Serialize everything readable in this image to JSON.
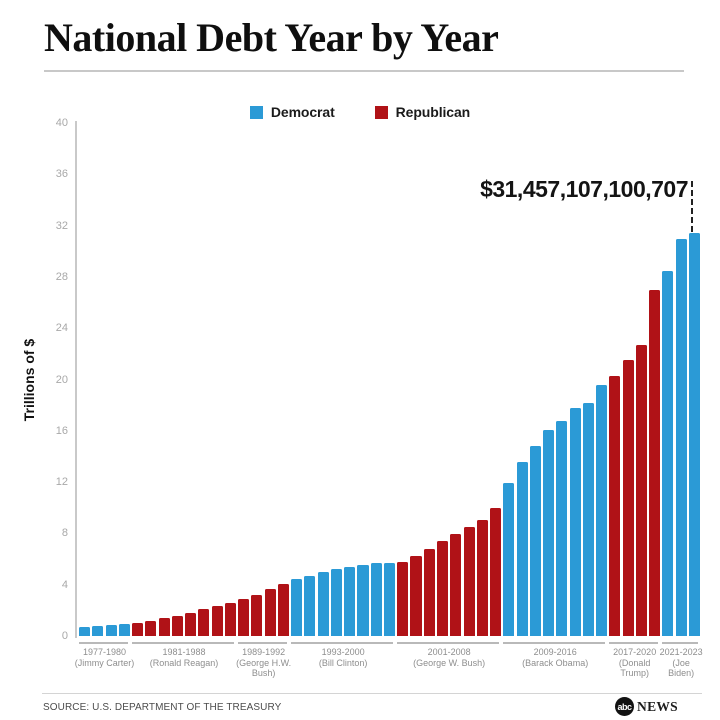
{
  "header": {
    "title": "National Debt Year by Year"
  },
  "legend": [
    {
      "label": "Democrat"
    },
    {
      "label": "Republican"
    }
  ],
  "y_axis": {
    "label": "Trillions of $",
    "ticks": [
      0,
      4,
      8,
      12,
      16,
      20,
      24,
      28,
      32,
      36,
      40
    ]
  },
  "footer": {
    "source": "SOURCE: U.S. DEPARTMENT OF THE TREASURY",
    "logo_abc": "abc",
    "logo_news": "NEWS"
  },
  "chart_data": {
    "type": "bar",
    "title": "National Debt Year by Year",
    "ylabel": "Trillions of $",
    "ylim": [
      0,
      40
    ],
    "grid": false,
    "legend_position": "top",
    "annotation": "$31,457,107,100,707",
    "annotation_points_to": "2023",
    "start_year": 1977,
    "colors": {
      "Democrat": "#2b9ad6",
      "Republican": "#b01217"
    },
    "groups": [
      {
        "years": "1977-1980",
        "president": "Jimmy Carter",
        "party": "Democrat",
        "label_lines": [
          "(Jimmy Carter)"
        ],
        "values": [
          0.7,
          0.77,
          0.83,
          0.91
        ]
      },
      {
        "years": "1981-1988",
        "president": "Ronald Reagan",
        "party": "Republican",
        "label_lines": [
          "(Ronald Reagan)"
        ],
        "values": [
          1.0,
          1.14,
          1.38,
          1.57,
          1.82,
          2.13,
          2.35,
          2.6
        ]
      },
      {
        "years": "1989-1992",
        "president": "George H.W. Bush",
        "party": "Republican",
        "label_lines": [
          "(George H.W.",
          "Bush)"
        ],
        "values": [
          2.86,
          3.23,
          3.67,
          4.06
        ]
      },
      {
        "years": "1993-2000",
        "president": "Bill Clinton",
        "party": "Democrat",
        "label_lines": [
          "(Bill Clinton)"
        ],
        "values": [
          4.41,
          4.69,
          4.97,
          5.22,
          5.41,
          5.53,
          5.66,
          5.67
        ]
      },
      {
        "years": "2001-2008",
        "president": "George W. Bush",
        "party": "Republican",
        "label_lines": [
          "(George W. Bush)"
        ],
        "values": [
          5.81,
          6.23,
          6.78,
          7.38,
          7.93,
          8.51,
          9.01,
          10.02
        ]
      },
      {
        "years": "2009-2016",
        "president": "Barack Obama",
        "party": "Democrat",
        "label_lines": [
          "(Barack Obama)"
        ],
        "values": [
          11.91,
          13.56,
          14.79,
          16.07,
          16.74,
          17.82,
          18.15,
          19.57
        ]
      },
      {
        "years": "2017-2020",
        "president": "Donald Trump",
        "party": "Republican",
        "label_lines": [
          "(Donald",
          "Trump)"
        ],
        "values": [
          20.24,
          21.52,
          22.72,
          26.95
        ]
      },
      {
        "years": "2021-2023",
        "president": "Joe Biden",
        "party": "Democrat",
        "label_lines": [
          "(Joe",
          "Biden)"
        ],
        "values": [
          28.43,
          30.93,
          31.46
        ]
      }
    ]
  }
}
